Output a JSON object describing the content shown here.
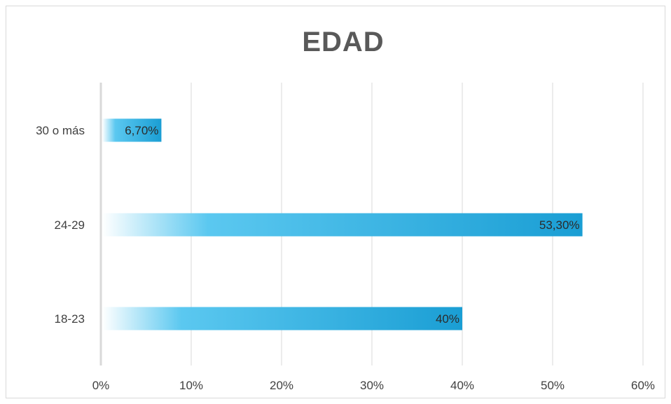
{
  "chart_data": {
    "type": "bar",
    "orientation": "horizontal",
    "title": "EDAD",
    "categories": [
      "18-23",
      "24-29",
      "30 o más"
    ],
    "values": [
      40,
      53.3,
      6.7
    ],
    "data_labels": [
      "40%",
      "53,30%",
      "6,70%"
    ],
    "xlim": [
      0,
      60
    ],
    "x_ticks": [
      0,
      10,
      20,
      30,
      40,
      50,
      60
    ],
    "x_tick_labels": [
      "0%",
      "10%",
      "20%",
      "30%",
      "40%",
      "50%",
      "60%"
    ],
    "xlabel": "",
    "ylabel": "",
    "grid": true,
    "legend": "none",
    "bar_colors": {
      "start": "#ffffff",
      "mid": "#5bc8f0",
      "end": "#1a9ed4"
    },
    "gridline_color": "#d9d9d9",
    "axis_color": "#d9d9d9"
  }
}
